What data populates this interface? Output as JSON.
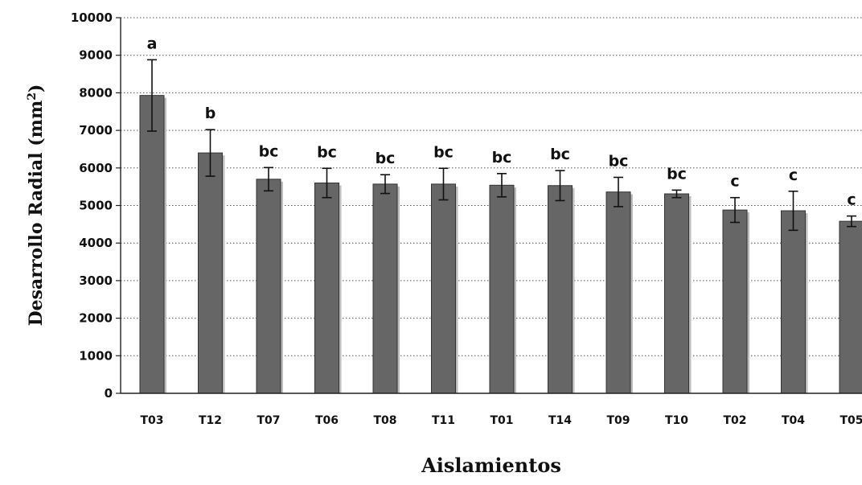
{
  "chart_data": {
    "type": "bar",
    "title": "",
    "xlabel": "Aislamientos",
    "ylabel_main": "Desarrollo Radial (mm",
    "ylabel_sup": "2",
    "ylabel_close": ")",
    "ylim": [
      0,
      10000
    ],
    "yticks": [
      "0",
      "1000",
      "2000",
      "3000",
      "4000",
      "5000",
      "6000",
      "7000",
      "8000",
      "9000",
      "10000"
    ],
    "grid": "horizontal-dotted",
    "colors": {
      "bar": "#666666",
      "bar_edge": "#333333",
      "error": "#111111"
    },
    "categories": [
      "T03",
      "T12",
      "T07",
      "T06",
      "T08",
      "T11",
      "T01",
      "T14",
      "T09",
      "T10",
      "T02",
      "T04",
      "T05"
    ],
    "values": [
      7930,
      6400,
      5700,
      5600,
      5570,
      5570,
      5540,
      5530,
      5360,
      5310,
      4880,
      4860,
      4580
    ],
    "error": [
      950,
      620,
      310,
      390,
      250,
      420,
      310,
      400,
      390,
      100,
      330,
      520,
      140
    ],
    "significance": [
      "a",
      "b",
      "bc",
      "bc",
      "bc",
      "bc",
      "bc",
      "bc",
      "bc",
      "bc",
      "c",
      "c",
      "c"
    ]
  }
}
